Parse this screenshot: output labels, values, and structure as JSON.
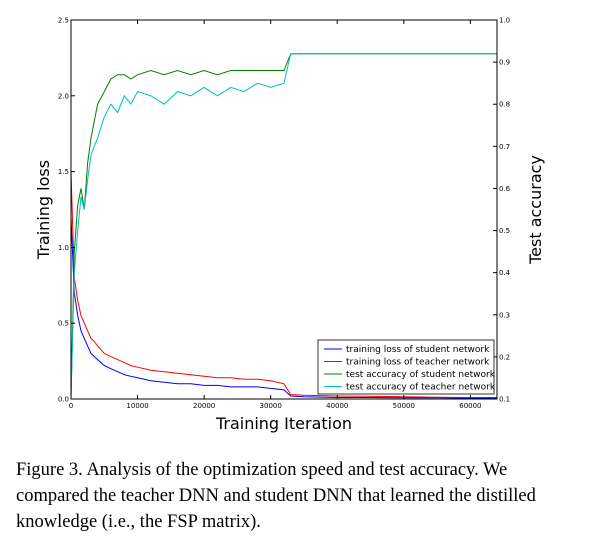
{
  "chart_data": {
    "type": "line",
    "xlabel": "Training Iteration",
    "ylabel_left": "Training loss",
    "ylabel_right": "Test accuracy",
    "xlim": [
      0,
      64000
    ],
    "ylim_left": [
      0.0,
      2.5
    ],
    "ylim_right": [
      0.1,
      1.0
    ],
    "x_ticks": [
      0,
      10000,
      20000,
      30000,
      40000,
      50000,
      60000
    ],
    "x_tick_labels": [
      "0",
      "10000",
      "20000",
      "30000",
      "40000",
      "50000",
      "60000"
    ],
    "y_left_ticks": [
      0.0,
      0.5,
      1.0,
      1.5,
      2.0,
      2.5
    ],
    "y_left_tick_labels": [
      "0.0",
      "0.5",
      "1.0",
      "1.5",
      "2.0",
      "2.5"
    ],
    "y_right_ticks": [
      0.1,
      0.2,
      0.3,
      0.4,
      0.5,
      0.6,
      0.7,
      0.8,
      0.9,
      1.0
    ],
    "y_right_tick_labels": [
      "0.1",
      "0.2",
      "0.3",
      "0.4",
      "0.5",
      "0.6",
      "0.7",
      "0.8",
      "0.9",
      "1.0"
    ],
    "grid": false,
    "legend_position": "lower-right",
    "series": [
      {
        "name": "training loss of student network",
        "axis": "left",
        "color": "#0000ff",
        "x": [
          0,
          500,
          1000,
          1500,
          2000,
          2500,
          3000,
          3500,
          4000,
          5000,
          6000,
          7000,
          8000,
          9000,
          10000,
          12000,
          14000,
          16000,
          18000,
          20000,
          22000,
          24000,
          26000,
          28000,
          30000,
          32000,
          33000,
          35000,
          40000,
          45000,
          50000,
          55000,
          60000,
          64000
        ],
        "y": [
          1.2,
          0.7,
          0.55,
          0.45,
          0.4,
          0.35,
          0.3,
          0.28,
          0.26,
          0.22,
          0.2,
          0.18,
          0.16,
          0.15,
          0.14,
          0.12,
          0.11,
          0.1,
          0.1,
          0.09,
          0.09,
          0.08,
          0.08,
          0.08,
          0.07,
          0.06,
          0.02,
          0.015,
          0.01,
          0.01,
          0.008,
          0.008,
          0.006,
          0.006
        ]
      },
      {
        "name": "training loss of teacher network",
        "axis": "left",
        "color": "#ff0000",
        "x": [
          0,
          500,
          1000,
          1500,
          2000,
          2500,
          3000,
          3500,
          4000,
          5000,
          6000,
          7000,
          8000,
          9000,
          10000,
          12000,
          14000,
          16000,
          18000,
          20000,
          22000,
          24000,
          26000,
          28000,
          30000,
          32000,
          33000,
          35000,
          40000,
          45000,
          50000,
          55000,
          60000,
          64000
        ],
        "y": [
          1.5,
          0.8,
          0.65,
          0.55,
          0.5,
          0.45,
          0.4,
          0.38,
          0.35,
          0.3,
          0.28,
          0.26,
          0.24,
          0.22,
          0.21,
          0.19,
          0.18,
          0.17,
          0.16,
          0.15,
          0.14,
          0.14,
          0.13,
          0.13,
          0.12,
          0.1,
          0.03,
          0.025,
          0.02,
          0.018,
          0.015,
          0.012,
          0.01,
          0.01
        ]
      },
      {
        "name": "test accuracy of student network",
        "axis": "right",
        "color": "#008000",
        "x": [
          0,
          500,
          1000,
          1500,
          2000,
          2500,
          3000,
          3500,
          4000,
          5000,
          6000,
          7000,
          8000,
          9000,
          10000,
          12000,
          14000,
          16000,
          18000,
          20000,
          22000,
          24000,
          26000,
          28000,
          30000,
          32000,
          33000,
          35000,
          40000,
          45000,
          50000,
          55000,
          60000,
          64000
        ],
        "y": [
          0.1,
          0.45,
          0.56,
          0.6,
          0.55,
          0.66,
          0.72,
          0.76,
          0.8,
          0.83,
          0.86,
          0.87,
          0.87,
          0.86,
          0.87,
          0.88,
          0.87,
          0.88,
          0.87,
          0.88,
          0.87,
          0.88,
          0.88,
          0.88,
          0.88,
          0.88,
          0.92,
          0.92,
          0.92,
          0.92,
          0.92,
          0.92,
          0.92,
          0.92
        ]
      },
      {
        "name": "test accuracy of teacher network",
        "axis": "right",
        "color": "#00bfbf",
        "x": [
          0,
          500,
          1000,
          1500,
          2000,
          2500,
          3000,
          3500,
          4000,
          5000,
          6000,
          7000,
          8000,
          9000,
          10000,
          12000,
          14000,
          16000,
          18000,
          20000,
          22000,
          24000,
          26000,
          28000,
          30000,
          32000,
          33000,
          35000,
          40000,
          45000,
          50000,
          55000,
          60000,
          64000
        ],
        "y": [
          0.1,
          0.4,
          0.5,
          0.58,
          0.55,
          0.62,
          0.68,
          0.7,
          0.72,
          0.77,
          0.8,
          0.78,
          0.82,
          0.8,
          0.83,
          0.82,
          0.8,
          0.83,
          0.82,
          0.84,
          0.82,
          0.84,
          0.83,
          0.85,
          0.84,
          0.85,
          0.92,
          0.92,
          0.92,
          0.92,
          0.92,
          0.92,
          0.92,
          0.92
        ]
      }
    ]
  },
  "caption": {
    "text": "Figure 3. Analysis of the optimization speed and test accuracy. We compared the teacher DNN and student DNN that learned the distilled knowledge (i.e., the FSP matrix)."
  }
}
